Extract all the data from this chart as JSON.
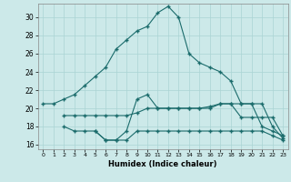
{
  "xlabel": "Humidex (Indice chaleur)",
  "bg_color": "#cce9e9",
  "grid_color": "#aad4d4",
  "line_color": "#1a6b6b",
  "xlim": [
    -0.5,
    23.5
  ],
  "ylim": [
    15.5,
    31.5
  ],
  "xticks": [
    0,
    1,
    2,
    3,
    4,
    5,
    6,
    7,
    8,
    9,
    10,
    11,
    12,
    13,
    14,
    15,
    16,
    17,
    18,
    19,
    20,
    21,
    22,
    23
  ],
  "yticks": [
    16,
    18,
    20,
    22,
    24,
    26,
    28,
    30
  ],
  "line1_x": [
    0,
    1,
    2,
    3,
    4,
    5,
    6,
    7,
    8,
    9,
    10,
    11,
    12,
    13,
    14,
    15,
    16,
    17,
    18,
    19,
    20,
    21,
    22,
    23
  ],
  "line1_y": [
    20.5,
    20.5,
    21.0,
    21.5,
    22.5,
    23.5,
    24.5,
    26.5,
    27.5,
    28.5,
    29.0,
    30.5,
    31.2,
    30.0,
    26.0,
    25.0,
    24.5,
    24.0,
    23.0,
    20.5,
    20.5,
    18.0,
    17.5,
    17.0
  ],
  "line2_x": [
    2,
    3,
    4,
    5,
    6,
    7,
    8,
    9,
    10,
    11,
    12,
    13,
    14,
    15,
    16,
    17,
    18,
    19,
    20,
    21,
    22,
    23
  ],
  "line2_y": [
    19.2,
    19.2,
    19.2,
    19.2,
    19.2,
    19.2,
    19.2,
    19.5,
    20.0,
    20.0,
    20.0,
    20.0,
    20.0,
    20.0,
    20.2,
    20.5,
    20.5,
    20.5,
    20.5,
    20.5,
    18.0,
    16.7
  ],
  "line3_x": [
    2,
    3,
    4,
    5,
    6,
    7,
    8,
    9,
    10,
    11,
    12,
    13,
    14,
    15,
    16,
    17,
    18,
    19,
    20,
    21,
    22,
    23
  ],
  "line3_y": [
    18.0,
    17.5,
    17.5,
    17.5,
    16.5,
    16.5,
    17.5,
    21.0,
    21.5,
    20.0,
    20.0,
    20.0,
    20.0,
    20.0,
    20.0,
    20.5,
    20.5,
    19.0,
    19.0,
    19.0,
    19.0,
    17.0
  ],
  "line4_x": [
    5,
    6,
    7,
    8,
    9,
    10,
    11,
    12,
    13,
    14,
    15,
    16,
    17,
    18,
    19,
    20,
    21,
    22,
    23
  ],
  "line4_y": [
    17.5,
    16.5,
    16.5,
    16.5,
    17.5,
    17.5,
    17.5,
    17.5,
    17.5,
    17.5,
    17.5,
    17.5,
    17.5,
    17.5,
    17.5,
    17.5,
    17.5,
    17.0,
    16.5
  ]
}
